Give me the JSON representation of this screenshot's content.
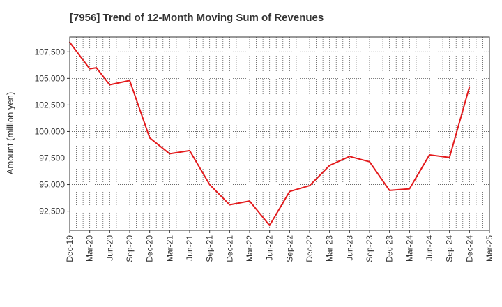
{
  "chart_data": {
    "type": "line",
    "title": "[7956]  Trend of 12-Month Moving Sum of Revenues",
    "xlabel": "",
    "ylabel": "Amount (million yen)",
    "ylim": [
      90700,
      108900
    ],
    "yticks": [
      92500,
      95000,
      97500,
      100000,
      102500,
      105000,
      107500
    ],
    "ytick_labels": [
      "92,500",
      "95,000",
      "97,500",
      "100,000",
      "102,500",
      "105,000",
      "107,500"
    ],
    "xtick_labels": [
      "Dec-19",
      "Mar-20",
      "Jun-20",
      "Sep-20",
      "Dec-20",
      "Mar-21",
      "Jun-21",
      "Sep-21",
      "Dec-21",
      "Mar-22",
      "Jun-22",
      "Sep-22",
      "Dec-22",
      "Mar-23",
      "Jun-23",
      "Sep-23",
      "Dec-23",
      "Mar-24",
      "Jun-24",
      "Sep-24",
      "Dec-24",
      "Mar-25"
    ],
    "x": [
      "Dec-19",
      "Jan-20",
      "Feb-20",
      "Mar-20",
      "Apr-20",
      "May-20",
      "Jun-20",
      "Jul-20",
      "Aug-20",
      "Sep-20",
      "Oct-20",
      "Nov-20",
      "Dec-20",
      "Jan-21",
      "Feb-21",
      "Mar-21",
      "Apr-21",
      "May-21",
      "Jun-21",
      "Jul-21",
      "Aug-21",
      "Sep-21",
      "Oct-21",
      "Nov-21",
      "Dec-21",
      "Jan-22",
      "Feb-22",
      "Mar-22",
      "Apr-22",
      "May-22",
      "Jun-22",
      "Jul-22",
      "Aug-22",
      "Sep-22",
      "Oct-22",
      "Nov-22",
      "Dec-22",
      "Jan-23",
      "Feb-23",
      "Mar-23",
      "Apr-23",
      "May-23",
      "Jun-23",
      "Jul-23",
      "Aug-23",
      "Sep-23",
      "Oct-23",
      "Nov-23",
      "Dec-23",
      "Jan-24",
      "Feb-24",
      "Mar-24",
      "Apr-24",
      "May-24",
      "Jun-24",
      "Jul-24",
      "Aug-24",
      "Sep-24",
      "Oct-24",
      "Nov-24",
      "Dec-24",
      "Jan-25",
      "Feb-25",
      "Mar-25"
    ],
    "series": [
      {
        "name": "",
        "color": "#e31a1c",
        "points": [
          {
            "x": "Dec-19",
            "y": 108400
          },
          {
            "x": "Mar-20",
            "y": 105900
          },
          {
            "x": "Apr-20",
            "y": 106000
          },
          {
            "x": "Jun-20",
            "y": 104400
          },
          {
            "x": "Sep-20",
            "y": 104800
          },
          {
            "x": "Dec-20",
            "y": 99400
          },
          {
            "x": "Mar-21",
            "y": 97900
          },
          {
            "x": "Jun-21",
            "y": 98200
          },
          {
            "x": "Sep-21",
            "y": 95000
          },
          {
            "x": "Dec-21",
            "y": 93100
          },
          {
            "x": "Mar-22",
            "y": 93450
          },
          {
            "x": "Jun-22",
            "y": 91150
          },
          {
            "x": "Sep-22",
            "y": 94350
          },
          {
            "x": "Dec-22",
            "y": 94900
          },
          {
            "x": "Mar-23",
            "y": 96800
          },
          {
            "x": "Jun-23",
            "y": 97650
          },
          {
            "x": "Sep-23",
            "y": 97150
          },
          {
            "x": "Dec-23",
            "y": 94450
          },
          {
            "x": "Mar-24",
            "y": 94600
          },
          {
            "x": "Jun-24",
            "y": 97800
          },
          {
            "x": "Sep-24",
            "y": 97550
          },
          {
            "x": "Dec-24",
            "y": 104200
          }
        ]
      }
    ],
    "grid": true,
    "legend": "none",
    "colors": {
      "line": "#e31a1c",
      "grid": "#555555",
      "axis": "#333333",
      "text": "#333333"
    }
  }
}
